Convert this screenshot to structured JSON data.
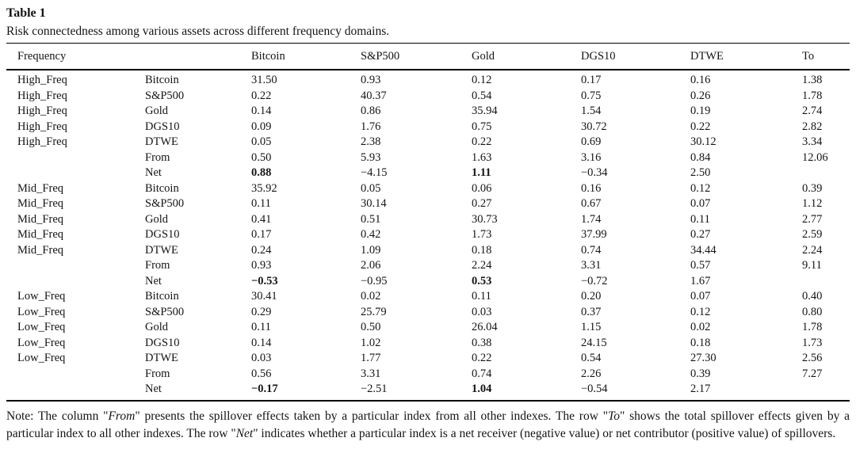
{
  "page": {
    "title": "Table 1",
    "caption": "Risk connectedness among various assets across different frequency domains."
  },
  "table": {
    "columns": [
      "Frequency",
      "",
      "Bitcoin",
      "S&P500",
      "Gold",
      "DGS10",
      "DTWE",
      "To"
    ],
    "rows": [
      {
        "cells": [
          "High_Freq",
          "Bitcoin",
          "31.50",
          "0.93",
          "0.12",
          "0.17",
          "0.16",
          "1.38"
        ],
        "bold": []
      },
      {
        "cells": [
          "High_Freq",
          "S&P500",
          "0.22",
          "40.37",
          "0.54",
          "0.75",
          "0.26",
          "1.78"
        ],
        "bold": []
      },
      {
        "cells": [
          "High_Freq",
          "Gold",
          "0.14",
          "0.86",
          "35.94",
          "1.54",
          "0.19",
          "2.74"
        ],
        "bold": []
      },
      {
        "cells": [
          "High_Freq",
          "DGS10",
          "0.09",
          "1.76",
          "0.75",
          "30.72",
          "0.22",
          "2.82"
        ],
        "bold": []
      },
      {
        "cells": [
          "High_Freq",
          "DTWE",
          "0.05",
          "2.38",
          "0.22",
          "0.69",
          "30.12",
          "3.34"
        ],
        "bold": []
      },
      {
        "cells": [
          "",
          "From",
          "0.50",
          "5.93",
          "1.63",
          "3.16",
          "0.84",
          "12.06"
        ],
        "bold": []
      },
      {
        "cells": [
          "",
          "Net",
          "0.88",
          "−4.15",
          "1.11",
          "−0.34",
          "2.50",
          ""
        ],
        "bold": [
          2,
          4
        ]
      },
      {
        "cells": [
          "Mid_Freq",
          "Bitcoin",
          "35.92",
          "0.05",
          "0.06",
          "0.16",
          "0.12",
          "0.39"
        ],
        "bold": []
      },
      {
        "cells": [
          "Mid_Freq",
          "S&P500",
          "0.11",
          "30.14",
          "0.27",
          "0.67",
          "0.07",
          "1.12"
        ],
        "bold": []
      },
      {
        "cells": [
          "Mid_Freq",
          "Gold",
          "0.41",
          "0.51",
          "30.73",
          "1.74",
          "0.11",
          "2.77"
        ],
        "bold": []
      },
      {
        "cells": [
          "Mid_Freq",
          "DGS10",
          "0.17",
          "0.42",
          "1.73",
          "37.99",
          "0.27",
          "2.59"
        ],
        "bold": []
      },
      {
        "cells": [
          "Mid_Freq",
          "DTWE",
          "0.24",
          "1.09",
          "0.18",
          "0.74",
          "34.44",
          "2.24"
        ],
        "bold": []
      },
      {
        "cells": [
          "",
          "From",
          "0.93",
          "2.06",
          "2.24",
          "3.31",
          "0.57",
          "9.11"
        ],
        "bold": []
      },
      {
        "cells": [
          "",
          "Net",
          "−0.53",
          "−0.95",
          "0.53",
          "−0.72",
          "1.67",
          ""
        ],
        "bold": [
          2,
          4
        ]
      },
      {
        "cells": [
          "Low_Freq",
          "Bitcoin",
          "30.41",
          "0.02",
          "0.11",
          "0.20",
          "0.07",
          "0.40"
        ],
        "bold": []
      },
      {
        "cells": [
          "Low_Freq",
          "S&P500",
          "0.29",
          "25.79",
          "0.03",
          "0.37",
          "0.12",
          "0.80"
        ],
        "bold": []
      },
      {
        "cells": [
          "Low_Freq",
          "Gold",
          "0.11",
          "0.50",
          "26.04",
          "1.15",
          "0.02",
          "1.78"
        ],
        "bold": []
      },
      {
        "cells": [
          "Low_Freq",
          "DGS10",
          "0.14",
          "1.02",
          "0.38",
          "24.15",
          "0.18",
          "1.73"
        ],
        "bold": []
      },
      {
        "cells": [
          "Low_Freq",
          "DTWE",
          "0.03",
          "1.77",
          "0.22",
          "0.54",
          "27.30",
          "2.56"
        ],
        "bold": []
      },
      {
        "cells": [
          "",
          "From",
          "0.56",
          "3.31",
          "0.74",
          "2.26",
          "0.39",
          "7.27"
        ],
        "bold": []
      },
      {
        "cells": [
          "",
          "Net",
          "−0.17",
          "−2.51",
          "1.04",
          "−0.54",
          "2.17",
          ""
        ],
        "bold": [
          2,
          4
        ]
      }
    ]
  },
  "note": {
    "segments": [
      {
        "t": "Note: The column \""
      },
      {
        "t": "From",
        "i": true
      },
      {
        "t": "\" presents the spillover effects taken by a particular index from all other indexes. The row \""
      },
      {
        "t": "To",
        "i": true
      },
      {
        "t": "\" shows the total spillover effects given by a particular index to all other indexes. The row \""
      },
      {
        "t": "Net",
        "i": true
      },
      {
        "t": "\" indicates whether a particular index is a net receiver (negative value) or net contributor (positive value) of spillovers."
      }
    ]
  },
  "colors": {
    "text": "#141414",
    "rule": "#000000",
    "background": "#ffffff"
  }
}
